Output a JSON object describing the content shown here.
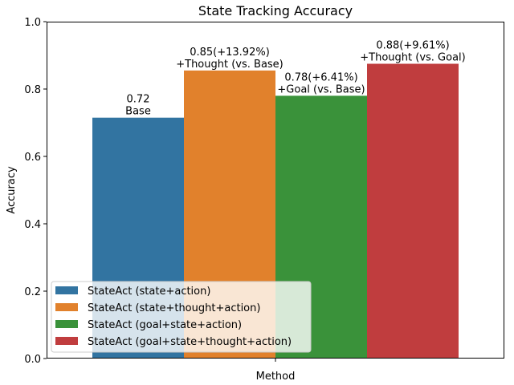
{
  "chart_data": {
    "type": "bar",
    "title": "State Tracking Accuracy",
    "xlabel": "Method",
    "ylabel": "Accuracy",
    "ylim": [
      0,
      1.0
    ],
    "yticks": [
      "0.0",
      "0.2",
      "0.4",
      "0.6",
      "0.8",
      "1.0"
    ],
    "ytick_values": [
      0,
      0.2,
      0.4,
      0.6,
      0.8,
      1.0
    ],
    "grid": false,
    "legend_position": "lower-left",
    "series": [
      {
        "name": "StateAct (state+action)",
        "value": 0.715,
        "color": "#3274a1",
        "label_line1": "0.72",
        "label_line2": "Base"
      },
      {
        "name": "StateAct (state+thought+action)",
        "value": 0.855,
        "color": "#e1812c",
        "label_line1": "0.85(+13.92%)",
        "label_line2": "+Thought (vs. Base)"
      },
      {
        "name": "StateAct (goal+state+action)",
        "value": 0.78,
        "color": "#3a923a",
        "label_line1": "0.78(+6.41%)",
        "label_line2": "+Goal (vs. Base)"
      },
      {
        "name": "StateAct (goal+state+thought+action)",
        "value": 0.875,
        "color": "#c03d3e",
        "label_line1": "0.88(+9.61%)",
        "label_line2": "+Thought (vs. Goal)"
      }
    ]
  }
}
